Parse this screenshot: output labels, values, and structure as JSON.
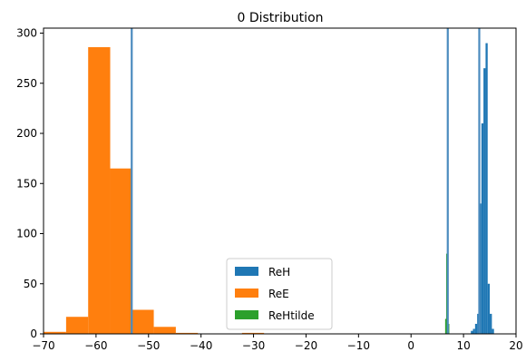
{
  "chart_data": {
    "type": "histogram",
    "title": "0 Distribution",
    "xlabel": "",
    "ylabel": "",
    "xlim": [
      -70,
      20
    ],
    "ylim": [
      0,
      305
    ],
    "xticks": [
      -70,
      -60,
      -50,
      -40,
      -30,
      -20,
      -10,
      0,
      10,
      20
    ],
    "yticks": [
      0,
      50,
      100,
      150,
      200,
      250,
      300
    ],
    "legend_position": "lower-center",
    "series": [
      {
        "name": "ReH",
        "color": "#1f77b4",
        "bins": [
          {
            "x0": 11.4,
            "x1": 11.8,
            "value": 3
          },
          {
            "x0": 11.8,
            "x1": 12.2,
            "value": 5
          },
          {
            "x0": 12.2,
            "x1": 12.6,
            "value": 10
          },
          {
            "x0": 12.6,
            "x1": 13.0,
            "value": 20
          },
          {
            "x0": 13.0,
            "x1": 13.4,
            "value": 130
          },
          {
            "x0": 13.4,
            "x1": 13.8,
            "value": 210
          },
          {
            "x0": 13.8,
            "x1": 14.2,
            "value": 265
          },
          {
            "x0": 14.2,
            "x1": 14.6,
            "value": 290
          },
          {
            "x0": 14.6,
            "x1": 15.0,
            "value": 50
          },
          {
            "x0": 15.0,
            "x1": 15.4,
            "value": 20
          },
          {
            "x0": 15.4,
            "x1": 15.8,
            "value": 5
          }
        ]
      },
      {
        "name": "ReE",
        "color": "#ff7f0e",
        "bins": [
          {
            "x0": -70.0,
            "x1": -65.7,
            "value": 2
          },
          {
            "x0": -65.7,
            "x1": -61.5,
            "value": 17
          },
          {
            "x0": -61.5,
            "x1": -57.3,
            "value": 286
          },
          {
            "x0": -57.3,
            "x1": -53.1,
            "value": 165
          },
          {
            "x0": -53.1,
            "x1": -49.0,
            "value": 24
          },
          {
            "x0": -49.0,
            "x1": -44.8,
            "value": 7
          },
          {
            "x0": -44.8,
            "x1": -40.6,
            "value": 1
          },
          {
            "x0": -32.2,
            "x1": -28.0,
            "value": 1
          }
        ]
      },
      {
        "name": "ReHtilde",
        "color": "#2ca02c",
        "bins": [
          {
            "x0": 6.5,
            "x1": 6.7,
            "value": 15
          },
          {
            "x0": 6.7,
            "x1": 6.9,
            "value": 80
          },
          {
            "x0": 6.9,
            "x1": 7.1,
            "value": 110
          },
          {
            "x0": 7.1,
            "x1": 7.3,
            "value": 10
          }
        ]
      }
    ],
    "vlines": [
      {
        "x": -53.2,
        "color": "#4b8bbe"
      },
      {
        "x": 7.0,
        "color": "#4b8bbe"
      },
      {
        "x": 13.0,
        "color": "#4b8bbe"
      }
    ]
  }
}
